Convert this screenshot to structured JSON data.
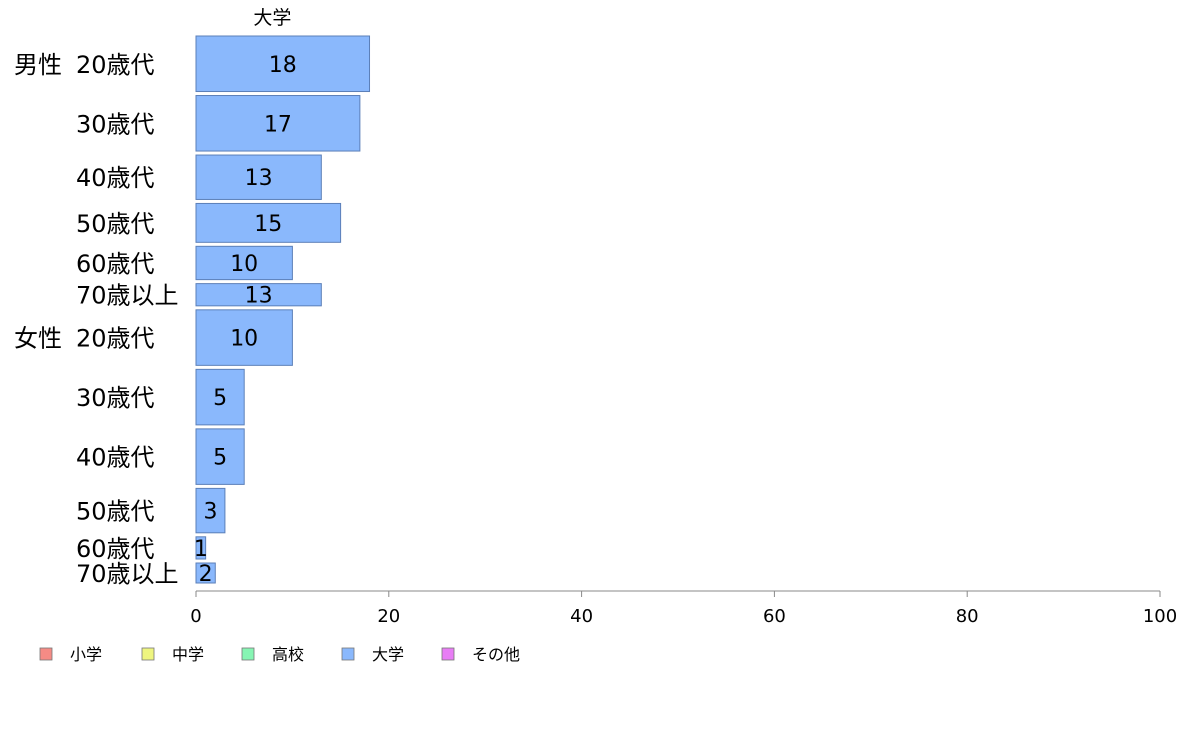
{
  "chart_data": {
    "type": "bar",
    "orientation": "horizontal",
    "title": "大学",
    "groups": [
      {
        "name": "男性",
        "categories": [
          "20歳代",
          "30歳代",
          "40歳代",
          "50歳代",
          "60歳代",
          "70歳以上"
        ],
        "values": [
          18,
          17,
          13,
          15,
          10,
          13
        ],
        "labels": [
          "18",
          "17",
          "13",
          "15",
          "10",
          "13"
        ]
      },
      {
        "name": "女性",
        "categories": [
          "20歳代",
          "30歳代",
          "40歳代",
          "50歳代",
          "60歳代",
          "70歳以上"
        ],
        "values": [
          10,
          5,
          5,
          3,
          1,
          2
        ],
        "labels": [
          "10",
          "5",
          "5",
          "3",
          "1",
          "2"
        ]
      }
    ],
    "bar_weights": [
      5,
      5,
      4,
      3.5,
      3,
      2,
      5,
      5,
      5,
      4,
      2,
      1.8
    ],
    "xlim": [
      0,
      100
    ],
    "xticks": [
      0,
      20,
      40,
      60,
      80,
      100
    ],
    "xtick_labels": [
      "0",
      "20",
      "40",
      "60",
      "80",
      "100"
    ],
    "bar_color": "#8ab8fc",
    "bar_edge_color": "#5b7fb8",
    "legend_position": "bottom-left",
    "legend": [
      {
        "label": "小学",
        "color": "#f58b85"
      },
      {
        "label": "中学",
        "color": "#eef57f"
      },
      {
        "label": "高校",
        "color": "#86f5b3"
      },
      {
        "label": "大学",
        "color": "#8ab8fc"
      },
      {
        "label": "その他",
        "color": "#e87df5"
      }
    ]
  }
}
